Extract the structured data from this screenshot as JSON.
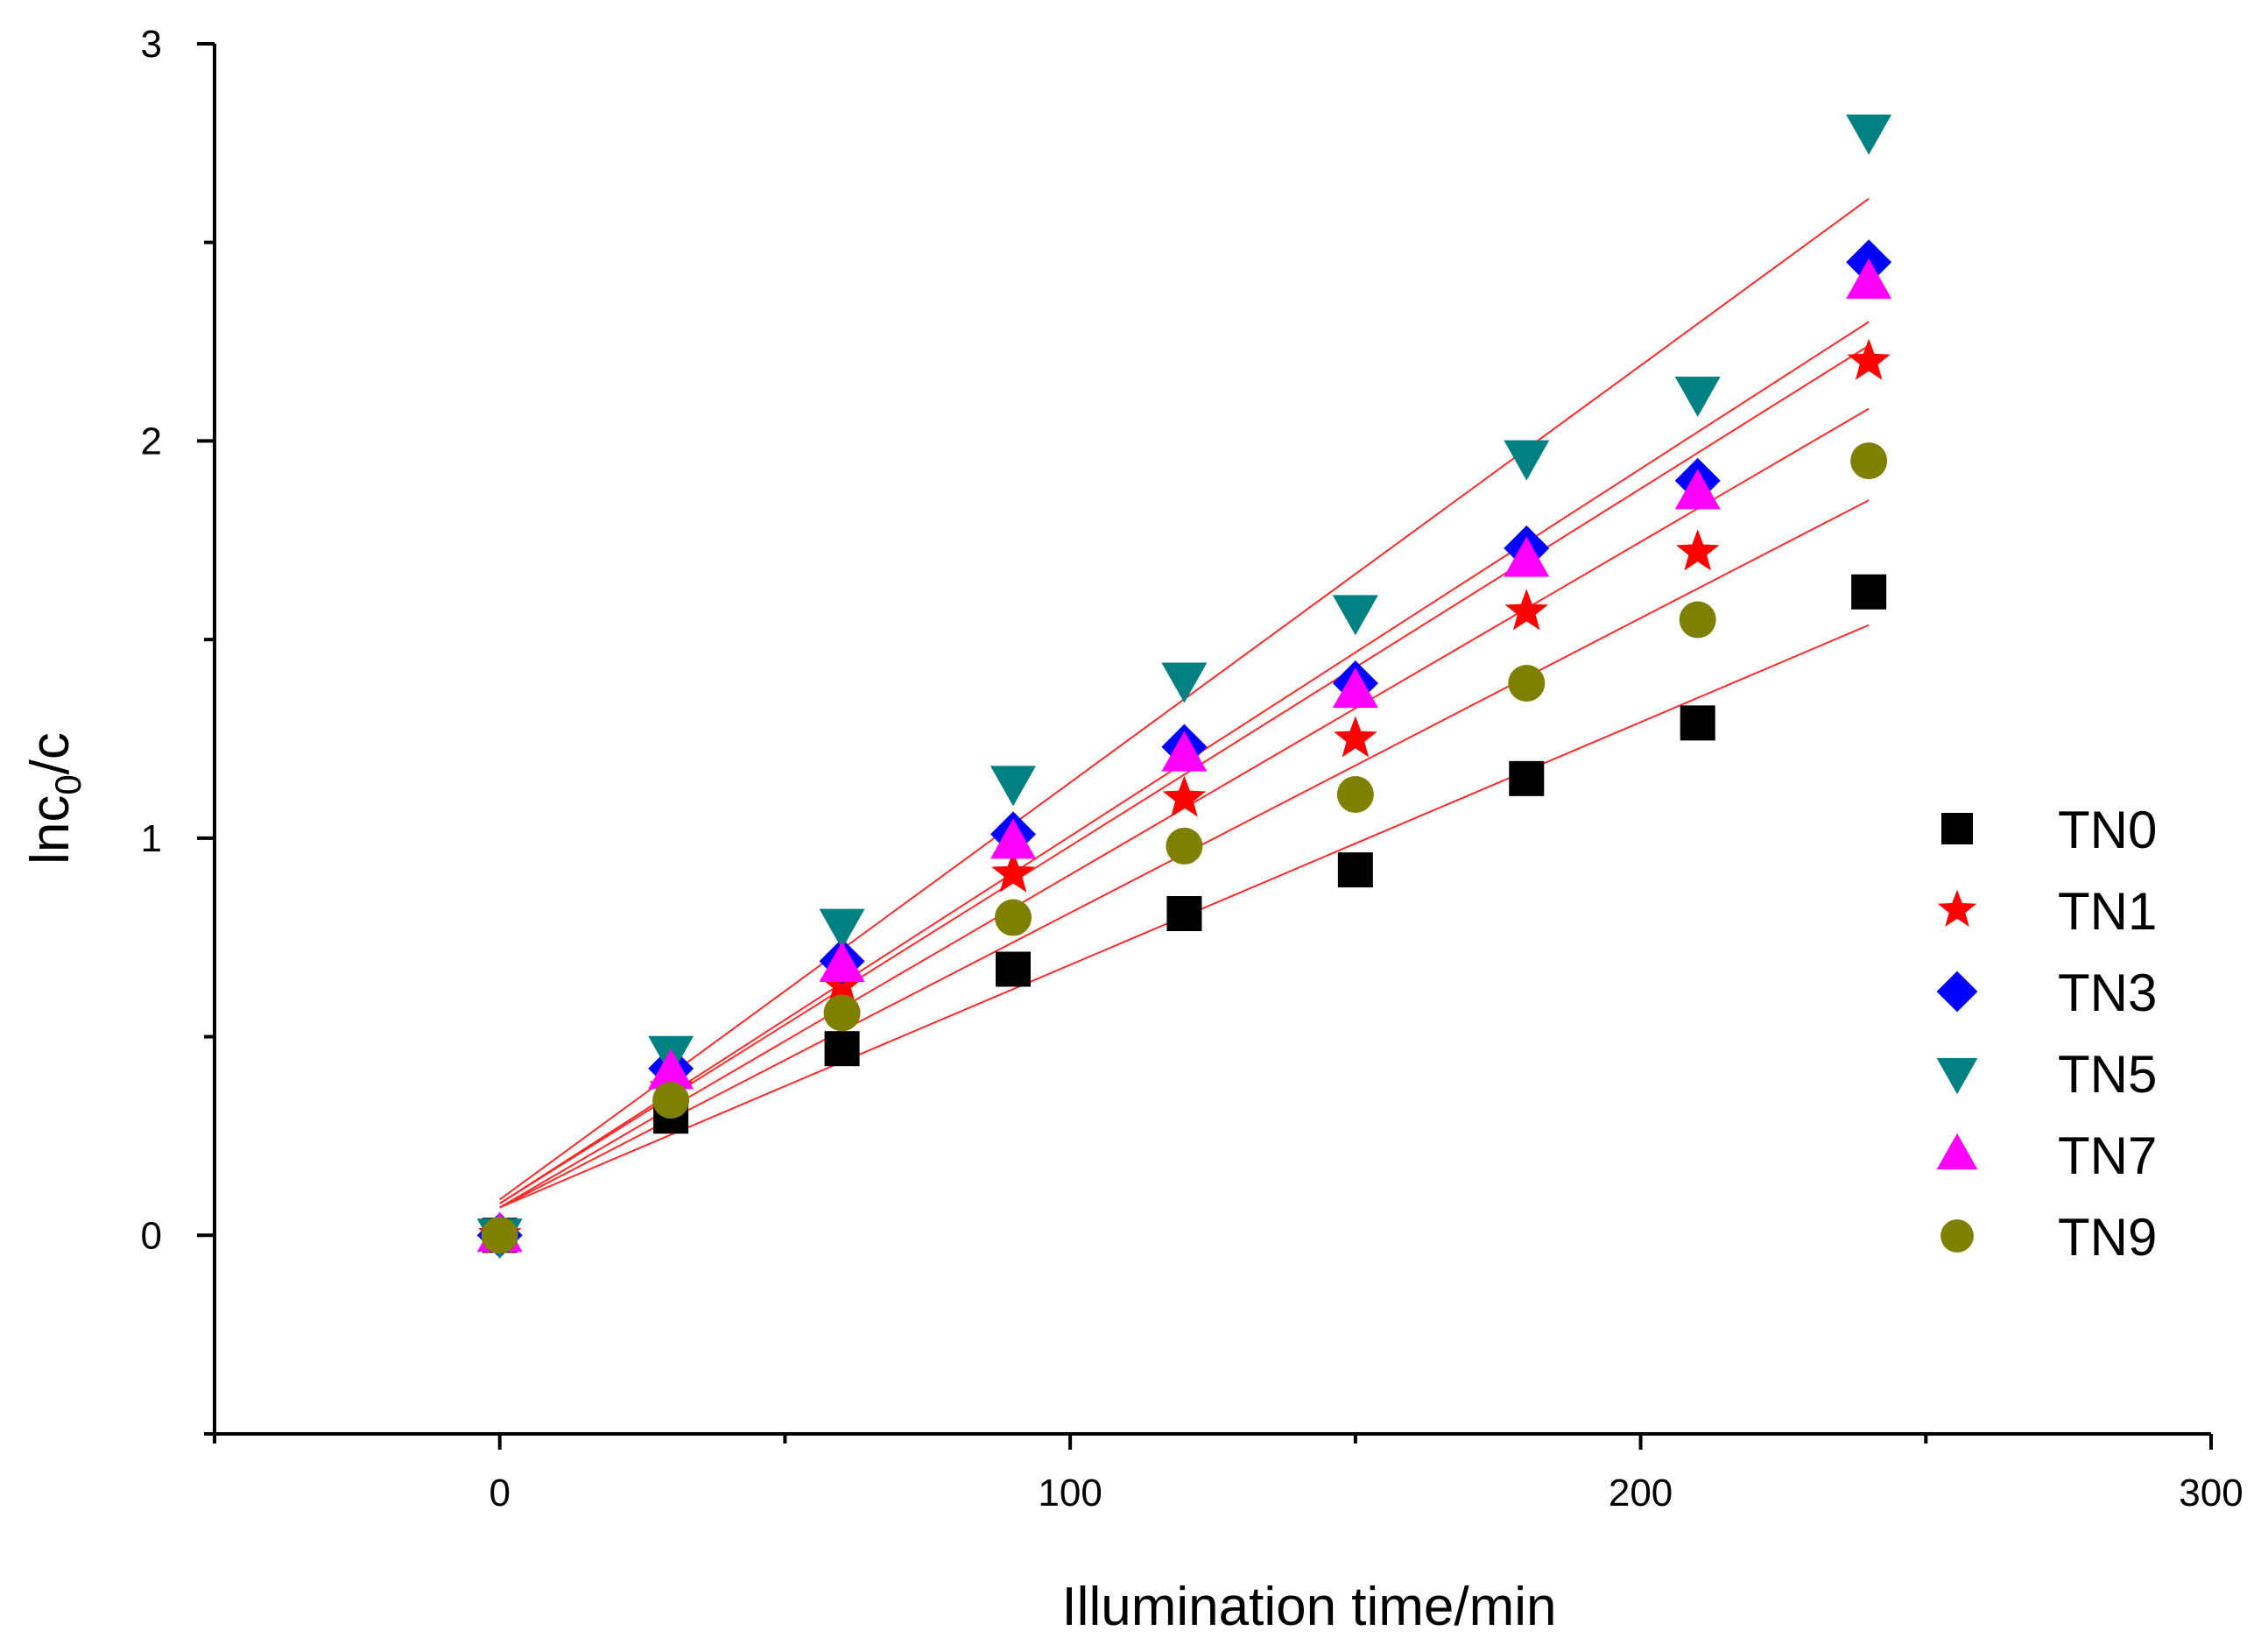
{
  "chart_data": {
    "type": "scatter",
    "xlabel": "Illumination time/min",
    "ylabel": {
      "main": "lnc",
      "sub": "0",
      "tail": "/c"
    },
    "xlim": [
      -50,
      300
    ],
    "ylim": [
      -0.5,
      3
    ],
    "xticks": [
      0,
      100,
      200,
      300
    ],
    "yticks": [
      0,
      1,
      2,
      3
    ],
    "xtick_labels": [
      "0",
      "100",
      "200",
      "300"
    ],
    "ytick_labels": [
      "0",
      "1",
      "2",
      "3"
    ],
    "grid": false,
    "legend_position": "right",
    "x": [
      0,
      30,
      60,
      90,
      120,
      150,
      180,
      210,
      240
    ],
    "series": [
      {
        "name": "TN0",
        "marker": "square",
        "color": "#000000",
        "values": [
          0,
          0.3,
          0.47,
          0.67,
          0.81,
          0.92,
          1.15,
          1.29,
          1.62
        ],
        "fit": {
          "intercept": 0.07,
          "slope": 0.00611
        }
      },
      {
        "name": "TN1",
        "marker": "star",
        "color": "#ff0000",
        "values": [
          0,
          0.37,
          0.63,
          0.91,
          1.1,
          1.25,
          1.57,
          1.72,
          2.2
        ],
        "fit": {
          "intercept": 0.07,
          "slope": 0.00838
        }
      },
      {
        "name": "TN3",
        "marker": "diamond",
        "color": "#0000ff",
        "values": [
          0,
          0.42,
          0.69,
          1.01,
          1.23,
          1.39,
          1.73,
          1.9,
          2.45
        ],
        "fit": {
          "intercept": 0.08,
          "slope": 0.00925
        }
      },
      {
        "name": "TN5",
        "marker": "triangle-down",
        "color": "#008080",
        "values": [
          0,
          0.46,
          0.78,
          1.14,
          1.4,
          1.57,
          1.96,
          2.12,
          2.78
        ],
        "fit": {
          "intercept": 0.09,
          "slope": 0.0105
        }
      },
      {
        "name": "TN7",
        "marker": "triangle-up",
        "color": "#ff00ff",
        "values": [
          0,
          0.41,
          0.68,
          0.99,
          1.21,
          1.37,
          1.7,
          1.87,
          2.4
        ],
        "fit": {
          "intercept": 0.08,
          "slope": 0.009
        }
      },
      {
        "name": "TN9",
        "marker": "circle",
        "color": "#808000",
        "values": [
          0,
          0.34,
          0.56,
          0.8,
          0.98,
          1.11,
          1.39,
          1.55,
          1.95
        ],
        "fit": {
          "intercept": 0.07,
          "slope": 0.00742
        }
      }
    ],
    "fit_line_color": "#ff2a2a"
  }
}
